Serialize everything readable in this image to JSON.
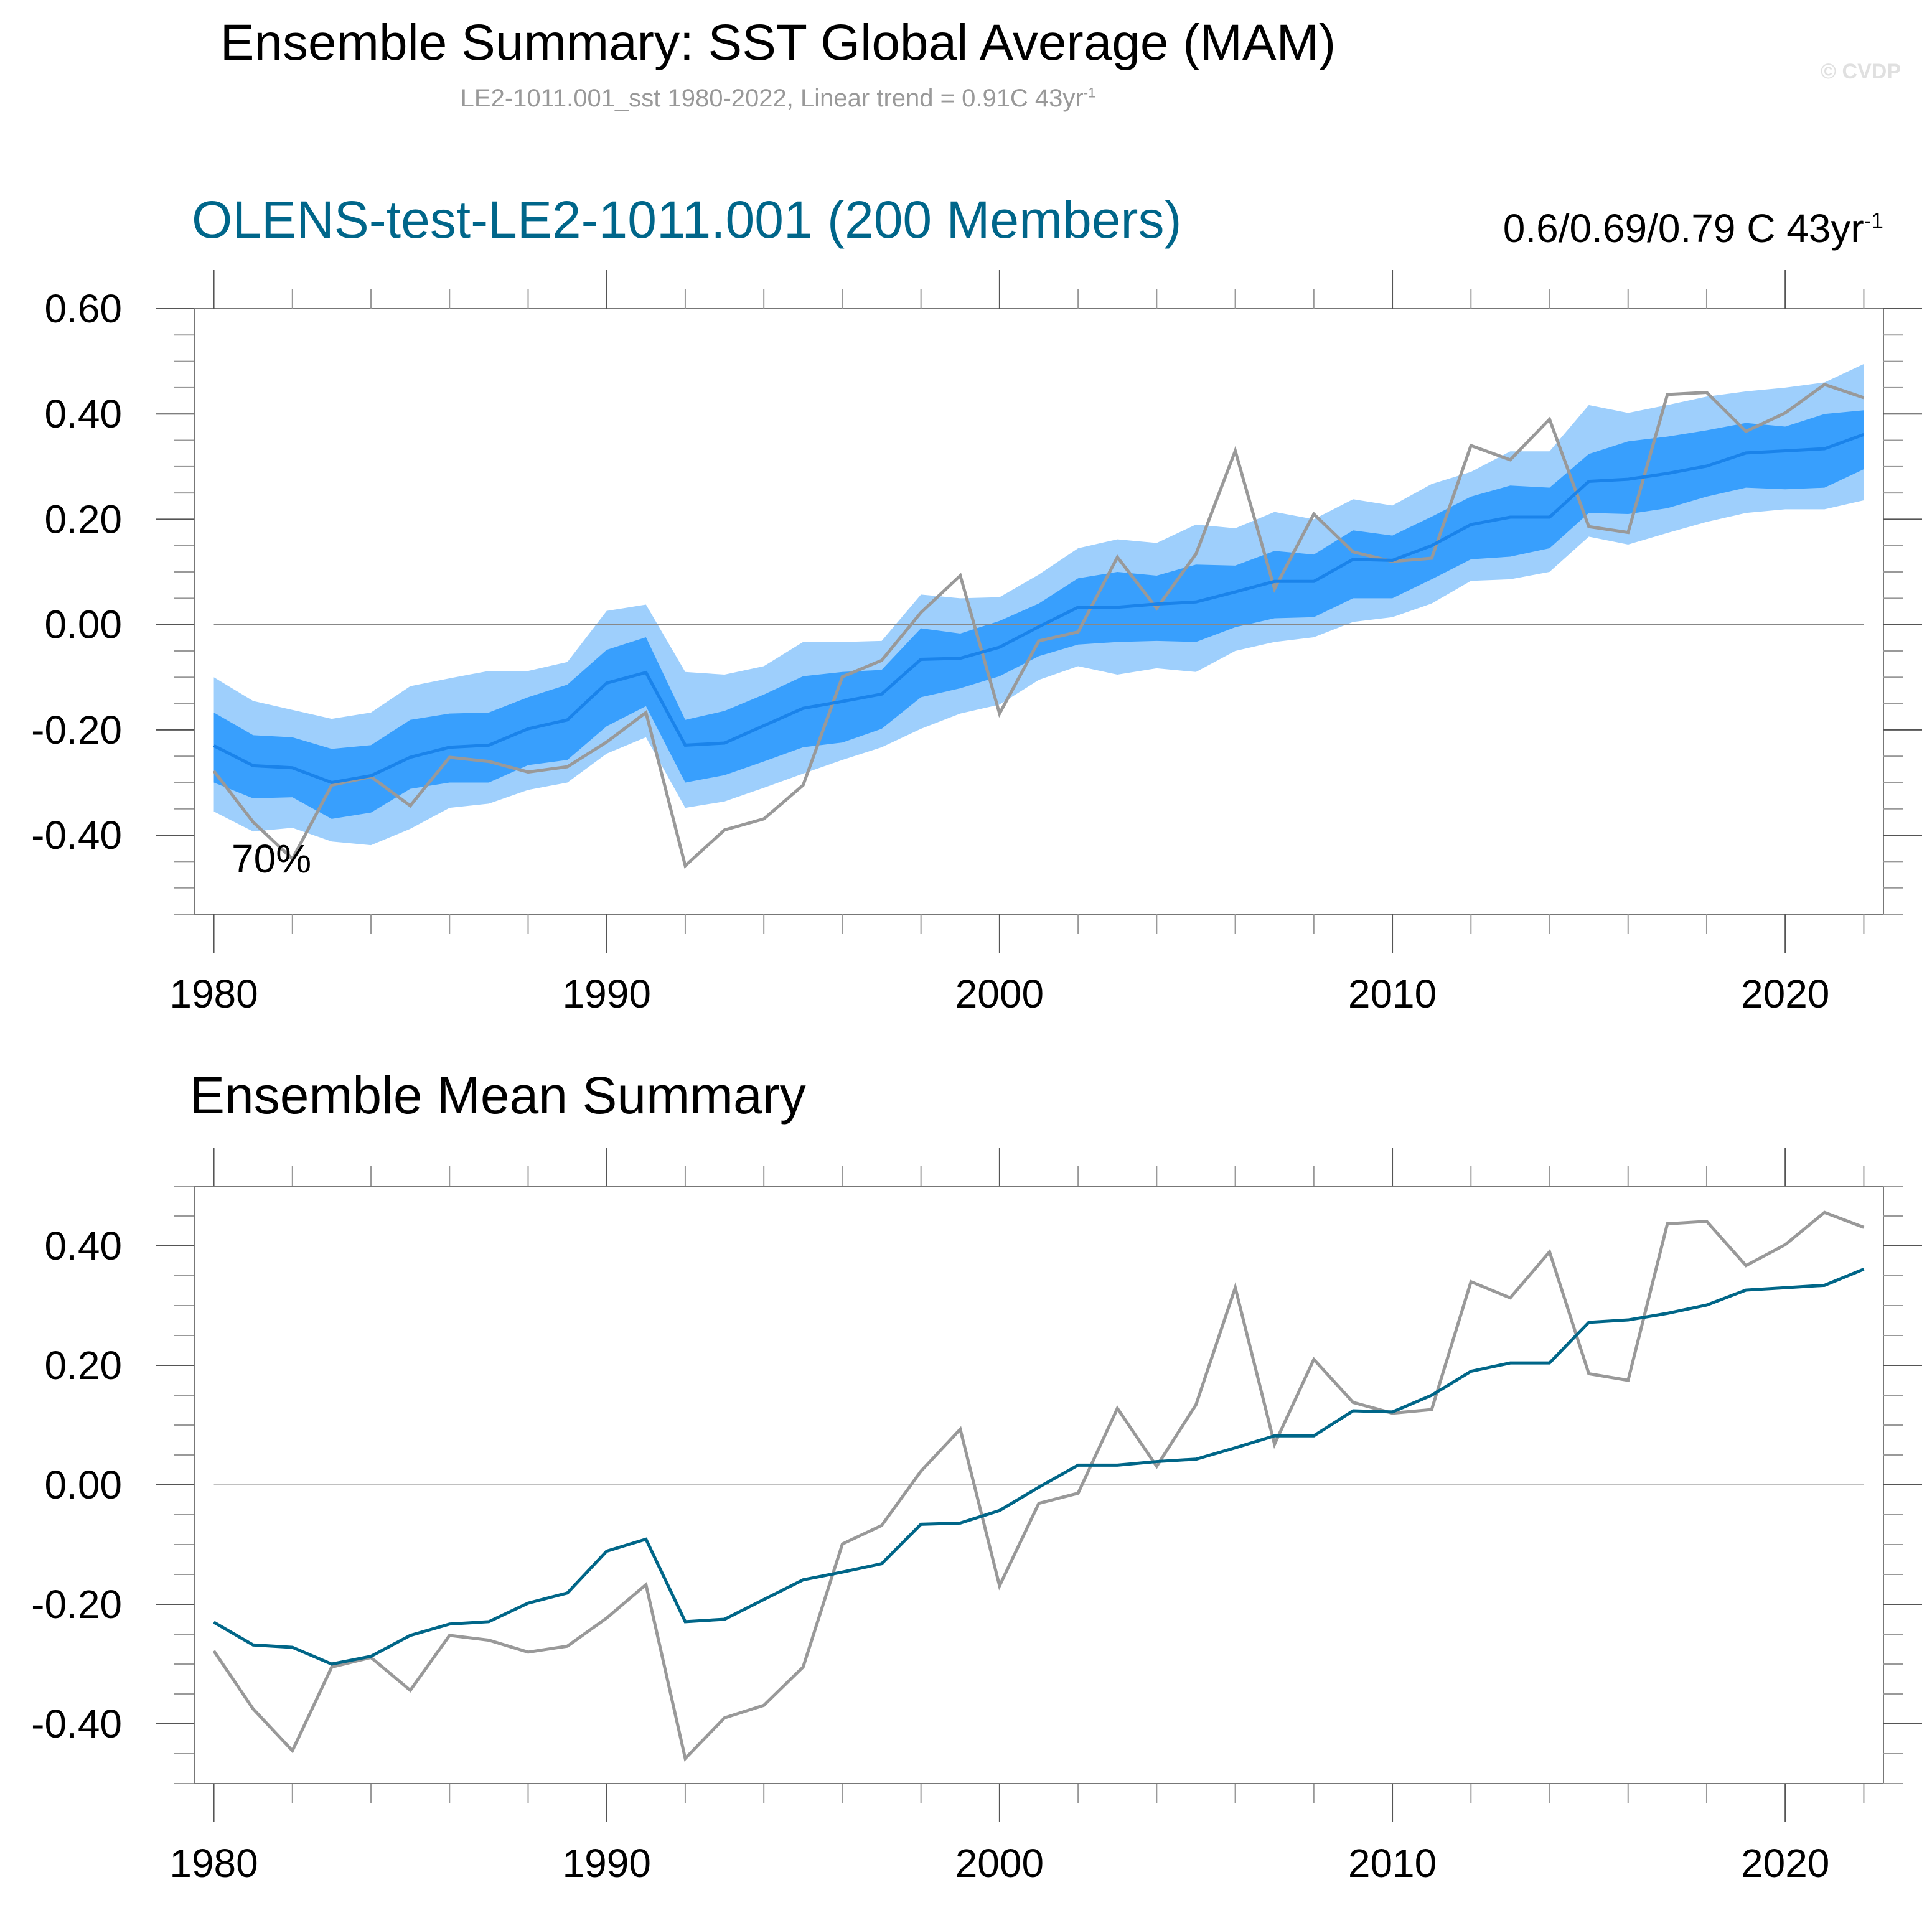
{
  "header": {
    "title": "Ensemble Summary: SST Global Average (MAM)",
    "subtitle_main": "LE2-1011.001_sst 1980-2022, Linear trend = 0.91C 43yr",
    "subtitle_sup": "-1",
    "watermark": "© CVDP"
  },
  "panel1": {
    "title": "OLENS-test-LE2-1011.001 (200 Members)",
    "trend_range_main": "0.6/0.69/0.79 C 43yr",
    "trend_range_sup": "-1",
    "annotation": "70%"
  },
  "panel2": {
    "title": "Ensemble Mean Summary"
  },
  "colors": {
    "outer_band": "#9ecffc",
    "inner_band": "#389ffd",
    "ensemble_mean_top": "#1a83ea",
    "ensemble_mean_bottom": "#006688",
    "observed": "#999999",
    "title_accent": "#00668a"
  },
  "chart_data": [
    {
      "type": "area",
      "title": "OLENS-test-LE2-1011.001 (200 Members)",
      "xlabel": "",
      "ylabel": "",
      "xlim": [
        1979.5,
        2022.5
      ],
      "ylim": [
        -0.55,
        0.6
      ],
      "xticks": [
        1980,
        1990,
        2000,
        2010,
        2020
      ],
      "xtick_labels": [
        "1980",
        "1990",
        "2000",
        "2010",
        "2020"
      ],
      "yticks": [
        -0.4,
        -0.2,
        0.0,
        0.2,
        0.4,
        0.6
      ],
      "ytick_labels": [
        "-0.40",
        "-0.20",
        "0.00",
        "0.20",
        "0.40",
        "0.60"
      ],
      "zero_line": true,
      "grid": false,
      "annotation": "70%",
      "x": [
        1980,
        1981,
        1982,
        1983,
        1984,
        1985,
        1986,
        1987,
        1988,
        1989,
        1990,
        1991,
        1992,
        1993,
        1994,
        1995,
        1996,
        1997,
        1998,
        1999,
        2000,
        2001,
        2002,
        2003,
        2004,
        2005,
        2006,
        2007,
        2008,
        2009,
        2010,
        2011,
        2012,
        2013,
        2014,
        2015,
        2016,
        2017,
        2018,
        2019,
        2020,
        2021,
        2022
      ],
      "series": [
        {
          "name": "outer_upper",
          "values": [
            -0.1,
            -0.145,
            -0.162,
            -0.179,
            -0.167,
            -0.117,
            -0.102,
            -0.088,
            -0.088,
            -0.071,
            0.026,
            0.038,
            -0.09,
            -0.095,
            -0.079,
            -0.033,
            -0.033,
            -0.031,
            0.057,
            0.05,
            0.052,
            0.095,
            0.145,
            0.162,
            0.155,
            0.19,
            0.183,
            0.214,
            0.2,
            0.238,
            0.226,
            0.267,
            0.29,
            0.329,
            0.329,
            0.417,
            0.402,
            0.417,
            0.433,
            0.443,
            0.45,
            0.46,
            0.495
          ]
        },
        {
          "name": "outer_lower",
          "values": [
            -0.355,
            -0.393,
            -0.386,
            -0.412,
            -0.419,
            -0.388,
            -0.348,
            -0.34,
            -0.314,
            -0.3,
            -0.245,
            -0.214,
            -0.348,
            -0.336,
            -0.31,
            -0.283,
            -0.257,
            -0.233,
            -0.198,
            -0.169,
            -0.152,
            -0.105,
            -0.079,
            -0.095,
            -0.083,
            -0.09,
            -0.05,
            -0.033,
            -0.024,
            0.005,
            0.014,
            0.04,
            0.083,
            0.086,
            0.1,
            0.167,
            0.152,
            0.174,
            0.195,
            0.212,
            0.219,
            0.219,
            0.236
          ]
        },
        {
          "name": "inner_upper",
          "values": [
            -0.167,
            -0.21,
            -0.214,
            -0.236,
            -0.229,
            -0.181,
            -0.169,
            -0.167,
            -0.138,
            -0.114,
            -0.048,
            -0.024,
            -0.181,
            -0.164,
            -0.133,
            -0.098,
            -0.09,
            -0.086,
            -0.007,
            -0.017,
            0.007,
            0.04,
            0.088,
            0.1,
            0.093,
            0.114,
            0.112,
            0.14,
            0.133,
            0.179,
            0.169,
            0.205,
            0.243,
            0.264,
            0.26,
            0.324,
            0.348,
            0.357,
            0.369,
            0.383,
            0.376,
            0.4,
            0.407
          ]
        },
        {
          "name": "inner_lower",
          "values": [
            -0.3,
            -0.33,
            -0.328,
            -0.369,
            -0.357,
            -0.312,
            -0.3,
            -0.3,
            -0.267,
            -0.257,
            -0.193,
            -0.155,
            -0.3,
            -0.286,
            -0.26,
            -0.233,
            -0.224,
            -0.198,
            -0.138,
            -0.121,
            -0.098,
            -0.06,
            -0.038,
            -0.033,
            -0.031,
            -0.033,
            -0.005,
            0.012,
            0.014,
            0.05,
            0.05,
            0.086,
            0.124,
            0.129,
            0.145,
            0.212,
            0.21,
            0.221,
            0.243,
            0.26,
            0.257,
            0.26,
            0.295
          ]
        },
        {
          "name": "ensemble_mean",
          "values": [
            -0.23,
            -0.268,
            -0.272,
            -0.3,
            -0.287,
            -0.252,
            -0.233,
            -0.229,
            -0.198,
            -0.181,
            -0.111,
            -0.091,
            -0.229,
            -0.225,
            -0.192,
            -0.159,
            -0.146,
            -0.132,
            -0.066,
            -0.064,
            -0.043,
            -0.004,
            0.033,
            0.033,
            0.039,
            0.043,
            0.062,
            0.082,
            0.082,
            0.124,
            0.122,
            0.15,
            0.19,
            0.204,
            0.204,
            0.272,
            0.276,
            0.287,
            0.301,
            0.326,
            0.33,
            0.334,
            0.361
          ]
        },
        {
          "name": "observed",
          "values": [
            -0.278,
            -0.375,
            -0.445,
            -0.305,
            -0.289,
            -0.344,
            -0.252,
            -0.26,
            -0.28,
            -0.27,
            -0.223,
            -0.167,
            -0.458,
            -0.39,
            -0.369,
            -0.305,
            -0.099,
            -0.068,
            0.023,
            0.093,
            -0.169,
            -0.031,
            -0.014,
            0.128,
            0.031,
            0.134,
            0.33,
            0.068,
            0.21,
            0.138,
            0.12,
            0.126,
            0.34,
            0.313,
            0.39,
            0.186,
            0.175,
            0.437,
            0.441,
            0.367,
            0.402,
            0.456,
            0.431
          ]
        }
      ]
    },
    {
      "type": "line",
      "title": "Ensemble Mean Summary",
      "xlabel": "",
      "ylabel": "",
      "xlim": [
        1979.5,
        2022.5
      ],
      "ylim": [
        -0.5,
        0.5
      ],
      "xticks": [
        1980,
        1990,
        2000,
        2010,
        2020
      ],
      "xtick_labels": [
        "1980",
        "1990",
        "2000",
        "2010",
        "2020"
      ],
      "yticks": [
        -0.4,
        -0.2,
        0.0,
        0.2,
        0.4
      ],
      "ytick_labels": [
        "-0.40",
        "-0.20",
        "0.00",
        "0.20",
        "0.40"
      ],
      "zero_line": true,
      "grid": false,
      "x": [
        1980,
        1981,
        1982,
        1983,
        1984,
        1985,
        1986,
        1987,
        1988,
        1989,
        1990,
        1991,
        1992,
        1993,
        1994,
        1995,
        1996,
        1997,
        1998,
        1999,
        2000,
        2001,
        2002,
        2003,
        2004,
        2005,
        2006,
        2007,
        2008,
        2009,
        2010,
        2011,
        2012,
        2013,
        2014,
        2015,
        2016,
        2017,
        2018,
        2019,
        2020,
        2021,
        2022
      ],
      "series": [
        {
          "name": "ensemble_mean",
          "values": [
            -0.23,
            -0.268,
            -0.272,
            -0.3,
            -0.287,
            -0.252,
            -0.233,
            -0.229,
            -0.198,
            -0.181,
            -0.111,
            -0.091,
            -0.229,
            -0.225,
            -0.192,
            -0.159,
            -0.146,
            -0.132,
            -0.066,
            -0.064,
            -0.043,
            -0.004,
            0.033,
            0.033,
            0.039,
            0.043,
            0.062,
            0.082,
            0.082,
            0.124,
            0.122,
            0.15,
            0.19,
            0.204,
            0.204,
            0.272,
            0.276,
            0.287,
            0.301,
            0.326,
            0.33,
            0.334,
            0.361
          ]
        },
        {
          "name": "observed",
          "values": [
            -0.278,
            -0.375,
            -0.445,
            -0.305,
            -0.289,
            -0.344,
            -0.252,
            -0.26,
            -0.28,
            -0.27,
            -0.223,
            -0.167,
            -0.458,
            -0.39,
            -0.369,
            -0.305,
            -0.099,
            -0.068,
            0.023,
            0.093,
            -0.169,
            -0.031,
            -0.014,
            0.128,
            0.031,
            0.134,
            0.33,
            0.068,
            0.21,
            0.138,
            0.12,
            0.126,
            0.34,
            0.313,
            0.39,
            0.186,
            0.175,
            0.437,
            0.441,
            0.367,
            0.402,
            0.456,
            0.431
          ]
        }
      ]
    }
  ]
}
